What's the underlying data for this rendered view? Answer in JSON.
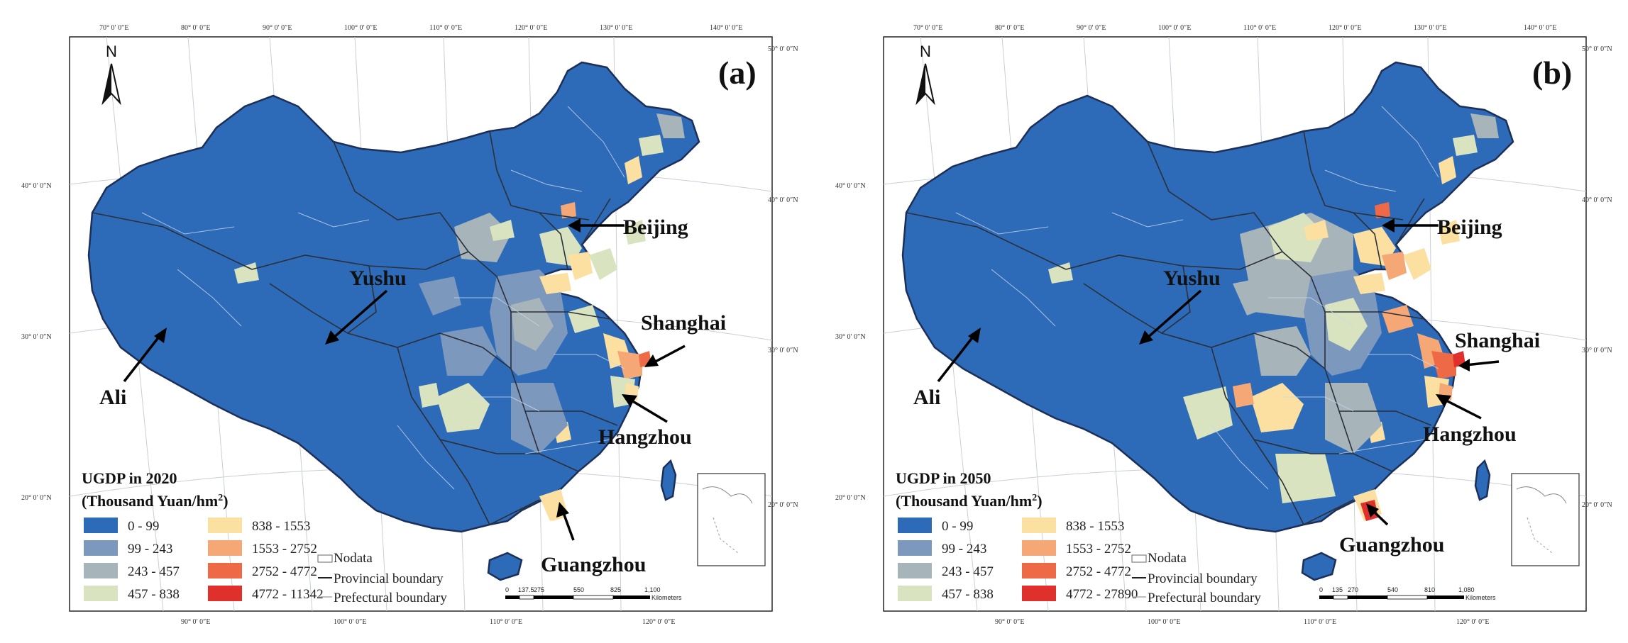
{
  "colors": {
    "c0": "#2d6bb8",
    "c1": "#7d98bd",
    "c2": "#a7b4ba",
    "c3": "#d9e3bf",
    "c4": "#fbe0a1",
    "c5": "#f5a776",
    "c6": "#ee6a46",
    "c7": "#e0302b"
  },
  "legend_ranges_common": [
    "0 - 99",
    "99 - 243",
    "243 - 457",
    "457 - 838",
    "838 - 1553",
    "1553 - 2752",
    "2752 - 4772"
  ],
  "boundary_labels": [
    "Nodata",
    "Provincial boundary",
    "Prefectural boundary"
  ],
  "north_label": "N",
  "top_lon_labels": [
    "70° 0′ 0″E",
    "80° 0′ 0″E",
    "90° 0′ 0″E",
    "100° 0′ 0″E",
    "110° 0′ 0″E",
    "120° 0′ 0″E",
    "130° 0′ 0″E",
    "140° 0′ 0″E"
  ],
  "bottom_lon_labels": [
    "90° 0′ 0″E",
    "100° 0′ 0″E",
    "110° 0′ 0″E",
    "120° 0′ 0″E"
  ],
  "left_lat_labels": [
    "40° 0′ 0″N",
    "30° 0′ 0″N",
    "20° 0′ 0″N"
  ],
  "right_lat_labels": [
    "50° 0′ 0″N",
    "40° 0′ 0″N",
    "30° 0′ 0″N",
    "20° 0′ 0″N"
  ],
  "panels": [
    {
      "id": "a",
      "letter": "(a)",
      "legend_title_line1": "UGDP in 2020",
      "legend_title_line2": "(Thousand Yuan/hm",
      "legend_title_sup": "2",
      "legend_title_end": ")",
      "last_range": "4772 - 11342",
      "scale_labels": [
        "0",
        "137.5",
        "275",
        "550",
        "825",
        "1,100"
      ],
      "scale_unit": "Kilometers",
      "cities": [
        "Beijing",
        "Yushu",
        "Shanghai",
        "Ali",
        "Hangzhou",
        "Guangzhou"
      ]
    },
    {
      "id": "b",
      "letter": "(b)",
      "legend_title_line1": "UGDP in 2050",
      "legend_title_line2": "(Thousand Yuan/hm",
      "legend_title_sup": "2",
      "legend_title_end": ")",
      "last_range": "4772 - 27890",
      "scale_labels": [
        "0",
        "135",
        "270",
        "540",
        "810",
        "1,080"
      ],
      "scale_unit": "Kilometers",
      "cities": [
        "Beijing",
        "Yushu",
        "Shanghai",
        "Ali",
        "Hangzhou",
        "Guangzhou"
      ]
    }
  ]
}
